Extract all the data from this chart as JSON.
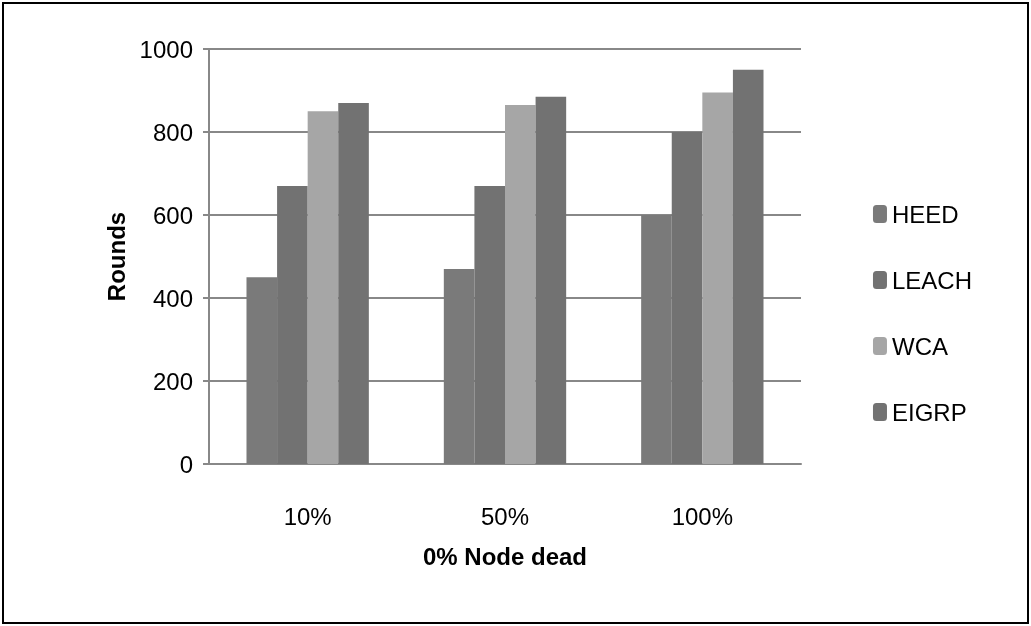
{
  "chart_data": {
    "type": "bar",
    "xlabel": "0% Node dead",
    "ylabel": "Rounds",
    "categories": [
      "10%",
      "50%",
      "100%"
    ],
    "series": [
      {
        "name": "HEED",
        "color": "#7a7a7a",
        "values": [
          450,
          470,
          600
        ]
      },
      {
        "name": "LEACH",
        "color": "#727272",
        "values": [
          670,
          670,
          800
        ]
      },
      {
        "name": "WCA",
        "color": "#a6a6a6",
        "values": [
          850,
          865,
          895
        ]
      },
      {
        "name": "EIGRP",
        "color": "#727272",
        "values": [
          870,
          885,
          950
        ]
      }
    ],
    "ylim": [
      0,
      1000
    ],
    "yticks": [
      0,
      200,
      400,
      600,
      800,
      1000
    ],
    "grid": "y",
    "legend": "right"
  }
}
